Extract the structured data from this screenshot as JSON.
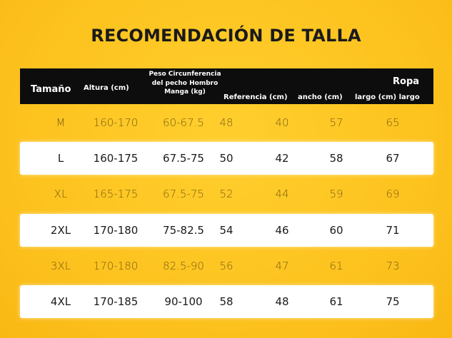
{
  "title": "RECOMENDACIÓN DE TALLA",
  "headers": {
    "size": "Tamaño",
    "height": "Altura (cm)",
    "weight": "Peso Circunferencia del pecho Hombro Manga (kg)",
    "reference": "Referencia (cm)",
    "width": "ancho (cm)",
    "ropa": "Ropa",
    "length": "largo (cm) largo"
  },
  "rows": [
    {
      "size": "M",
      "height": "160-170",
      "weight": "60-67.5",
      "ref": "48",
      "width": "40",
      "len1": "57",
      "len2": "65"
    },
    {
      "size": "L",
      "height": "160-175",
      "weight": "67.5-75",
      "ref": "50",
      "width": "42",
      "len1": "58",
      "len2": "67"
    },
    {
      "size": "XL",
      "height": "165-175",
      "weight": "67.5-75",
      "ref": "52",
      "width": "44",
      "len1": "59",
      "len2": "69"
    },
    {
      "size": "2XL",
      "height": "170-180",
      "weight": "75-82.5",
      "ref": "54",
      "width": "46",
      "len1": "60",
      "len2": "71"
    },
    {
      "size": "3XL",
      "height": "170-180",
      "weight": "82.5-90",
      "ref": "56",
      "width": "47",
      "len1": "61",
      "len2": "73"
    },
    {
      "size": "4XL",
      "height": "170-185",
      "weight": "90-100",
      "ref": "58",
      "width": "48",
      "len1": "61",
      "len2": "75"
    }
  ],
  "colors": {
    "background": "#fdc31f",
    "header": "#0d0d0d",
    "row_highlight": "#ffffff"
  }
}
